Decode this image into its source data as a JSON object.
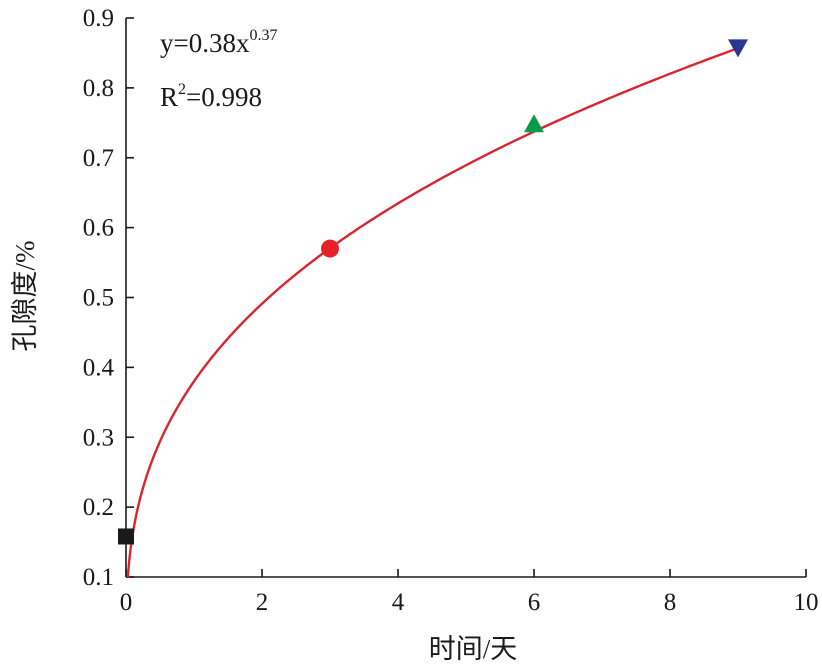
{
  "chart_data": {
    "type": "scatter",
    "title": "",
    "xlabel": "时间/天",
    "ylabel": "孔隙度/%",
    "xlim": [
      0,
      10
    ],
    "ylim": [
      0.1,
      0.9
    ],
    "xticks": [
      "0",
      "2",
      "4",
      "6",
      "8",
      "10"
    ],
    "yticks": [
      "0.1",
      "0.2",
      "0.3",
      "0.4",
      "0.5",
      "0.6",
      "0.7",
      "0.8",
      "0.9"
    ],
    "grid": false,
    "points": [
      {
        "x": 0,
        "y": 0.158,
        "marker": "square",
        "color": "#1a1a1a"
      },
      {
        "x": 3,
        "y": 0.57,
        "marker": "circle",
        "color": "#e8202a"
      },
      {
        "x": 6,
        "y": 0.748,
        "marker": "triangle-up",
        "color": "#0b9a4a"
      },
      {
        "x": 9,
        "y": 0.858,
        "marker": "triangle-down",
        "color": "#2a3694"
      }
    ],
    "fit": {
      "coefficient": 0.38,
      "exponent": 0.37,
      "color": "#d9252e",
      "equation_lhs": "y=0.38x",
      "equation_exp": "0.37",
      "r2_lhs": "R",
      "r2_sup": "2",
      "r2_rhs": "=0.998"
    }
  }
}
